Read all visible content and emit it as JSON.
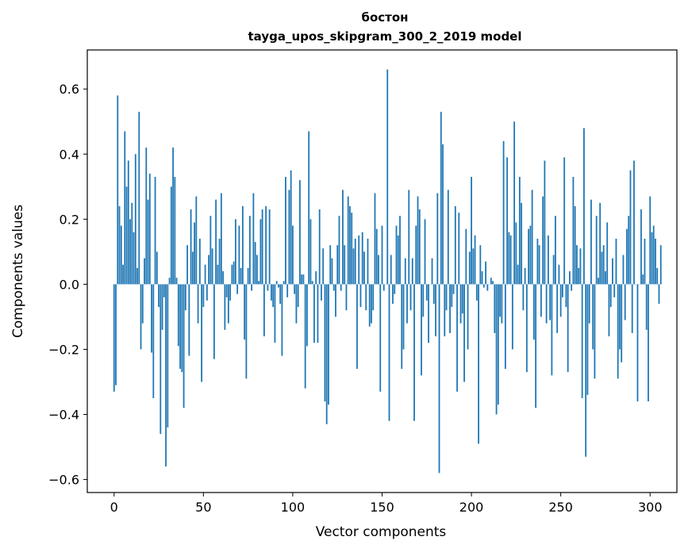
{
  "chart_data": {
    "type": "bar",
    "title": "бостон",
    "subtitle": "tayga_upos_skipgram_300_2_2019 model",
    "xlabel": "Vector components",
    "ylabel": "Components values",
    "xlim": [
      -15,
      315
    ],
    "ylim": [
      -0.64,
      0.72
    ],
    "x_ticks": [
      0,
      50,
      100,
      150,
      200,
      250,
      300
    ],
    "x_tick_labels": [
      "0",
      "50",
      "100",
      "150",
      "200",
      "250",
      "300"
    ],
    "y_ticks": [
      -0.6,
      -0.4,
      -0.2,
      0.0,
      0.2,
      0.4,
      0.6
    ],
    "y_tick_labels": [
      "−0.6",
      "−0.4",
      "−0.2",
      "0.0",
      "0.2",
      "0.4",
      "0.6"
    ],
    "grid": false,
    "bar_color": "#1f77b4",
    "values": [
      -0.33,
      -0.31,
      0.58,
      0.24,
      0.18,
      0.06,
      0.47,
      0.3,
      0.38,
      0.2,
      0.25,
      0.16,
      0.4,
      0.05,
      0.53,
      -0.2,
      -0.12,
      0.08,
      0.42,
      0.26,
      0.34,
      -0.21,
      -0.35,
      0.33,
      0.1,
      -0.07,
      -0.46,
      -0.14,
      -0.04,
      -0.56,
      -0.44,
      0.02,
      0.3,
      0.42,
      0.33,
      0.02,
      -0.19,
      -0.26,
      -0.27,
      -0.38,
      -0.08,
      0.12,
      -0.22,
      0.23,
      0.1,
      0.19,
      0.27,
      -0.12,
      0.14,
      -0.3,
      -0.07,
      0.06,
      -0.05,
      0.09,
      0.21,
      0.11,
      -0.23,
      0.26,
      0.06,
      0.14,
      0.28,
      0.04,
      -0.14,
      -0.04,
      -0.12,
      -0.05,
      0.06,
      0.07,
      0.2,
      -0.03,
      0.18,
      0.05,
      0.24,
      -0.17,
      -0.29,
      0.05,
      0.21,
      -0.02,
      0.28,
      0.13,
      0.09,
      0.01,
      0.2,
      0.23,
      -0.16,
      0.24,
      -0.02,
      0.23,
      -0.05,
      -0.07,
      -0.18,
      0.01,
      -0.01,
      -0.06,
      -0.22,
      0.01,
      0.33,
      -0.04,
      0.29,
      0.35,
      0.18,
      -0.03,
      -0.12,
      -0.07,
      0.32,
      0.03,
      0.03,
      -0.32,
      -0.19,
      0.47,
      0.2,
      0.01,
      -0.18,
      0.04,
      -0.18,
      0.23,
      -0.05,
      0.11,
      -0.36,
      -0.43,
      -0.37,
      0.12,
      0.08,
      -0.02,
      -0.1,
      0.12,
      0.21,
      -0.02,
      0.29,
      0.12,
      -0.08,
      0.27,
      0.24,
      0.22,
      0.11,
      0.14,
      -0.26,
      0.15,
      -0.07,
      0.16,
      0.1,
      -0.08,
      0.14,
      -0.13,
      -0.12,
      -0.08,
      0.28,
      0.17,
      0.09,
      -0.33,
      0.18,
      -0.02,
      0.0,
      0.66,
      -0.42,
      0.09,
      -0.06,
      -0.03,
      0.18,
      0.15,
      0.21,
      -0.26,
      -0.2,
      0.08,
      -0.12,
      0.29,
      -0.08,
      0.08,
      -0.42,
      0.18,
      0.27,
      0.23,
      -0.28,
      -0.1,
      0.2,
      -0.05,
      -0.18,
      0.0,
      0.08,
      -0.06,
      -0.16,
      0.28,
      -0.58,
      0.53,
      0.43,
      -0.16,
      -0.08,
      0.29,
      -0.15,
      -0.07,
      -0.03,
      0.24,
      -0.33,
      0.22,
      -0.12,
      -0.09,
      -0.3,
      0.17,
      -0.2,
      0.1,
      0.33,
      0.11,
      0.15,
      -0.05,
      -0.49,
      0.12,
      0.04,
      -0.01,
      0.07,
      -0.02,
      0.0,
      0.02,
      0.01,
      -0.15,
      -0.4,
      -0.37,
      -0.1,
      -0.12,
      0.44,
      -0.26,
      0.39,
      0.16,
      0.15,
      -0.2,
      0.5,
      0.19,
      0.06,
      0.33,
      0.25,
      -0.08,
      0.05,
      -0.27,
      0.17,
      0.18,
      0.29,
      -0.17,
      -0.38,
      0.14,
      0.12,
      -0.1,
      0.27,
      0.38,
      -0.12,
      0.15,
      -0.11,
      -0.28,
      0.09,
      0.21,
      -0.15,
      0.06,
      -0.1,
      -0.04,
      0.39,
      -0.07,
      -0.27,
      0.04,
      -0.02,
      0.33,
      0.24,
      0.12,
      0.05,
      0.11,
      -0.35,
      0.48,
      -0.53,
      -0.34,
      -0.12,
      0.26,
      -0.2,
      -0.29,
      0.21,
      0.02,
      0.25,
      0.1,
      0.12,
      0.04,
      0.19,
      -0.16,
      -0.07,
      0.08,
      -0.04,
      0.14,
      -0.29,
      -0.2,
      -0.24,
      0.09,
      -0.11,
      0.17,
      0.21,
      0.35,
      -0.15,
      0.38,
      0.0,
      -0.36,
      0.0,
      0.23,
      0.03,
      0.14,
      -0.14,
      -0.36,
      0.27,
      0.16,
      0.18,
      0.14,
      0.05,
      -0.06,
      0.12
    ]
  }
}
